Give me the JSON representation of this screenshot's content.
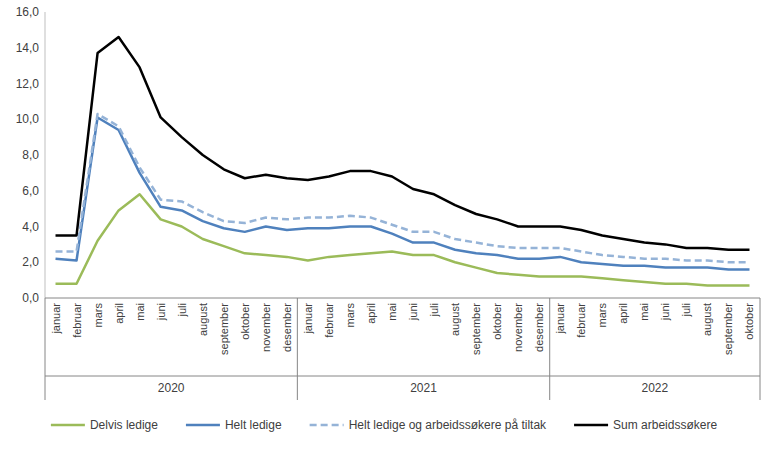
{
  "chart_data": {
    "type": "line",
    "categories": [
      "januar",
      "februar",
      "mars",
      "april",
      "mai",
      "juni",
      "juli",
      "august",
      "september",
      "oktober",
      "november",
      "desember",
      "januar",
      "februar",
      "mars",
      "april",
      "mai",
      "juni",
      "juli",
      "august",
      "september",
      "oktober",
      "november",
      "desember",
      "januar",
      "februar",
      "mars",
      "april",
      "mai",
      "juni",
      "juli",
      "august",
      "september",
      "oktober"
    ],
    "category_groups": [
      {
        "name": "2020",
        "count": 12
      },
      {
        "name": "2021",
        "count": 12
      },
      {
        "name": "2022",
        "count": 10
      }
    ],
    "series": [
      {
        "name": "Delvis ledige",
        "color": "#9bbb59",
        "line_style": "solid",
        "values": [
          0.8,
          0.8,
          3.2,
          4.9,
          5.8,
          4.4,
          4.0,
          3.3,
          2.9,
          2.5,
          2.4,
          2.3,
          2.1,
          2.3,
          2.4,
          2.5,
          2.6,
          2.4,
          2.4,
          2.0,
          1.7,
          1.4,
          1.3,
          1.2,
          1.2,
          1.2,
          1.1,
          1.0,
          0.9,
          0.8,
          0.8,
          0.7,
          0.7,
          0.7
        ]
      },
      {
        "name": "Helt ledige",
        "color": "#4f81bd",
        "line_style": "solid",
        "values": [
          2.2,
          2.1,
          10.1,
          9.4,
          7.0,
          5.1,
          4.9,
          4.3,
          3.9,
          3.7,
          4.0,
          3.8,
          3.9,
          3.9,
          4.0,
          4.0,
          3.6,
          3.1,
          3.1,
          2.7,
          2.5,
          2.4,
          2.2,
          2.2,
          2.3,
          2.0,
          1.9,
          1.8,
          1.8,
          1.7,
          1.7,
          1.7,
          1.6,
          1.6
        ]
      },
      {
        "name": "Helt ledige og arbeidssøkere på tiltak",
        "color": "#95b3d7",
        "line_style": "dashed",
        "values": [
          2.6,
          2.6,
          10.3,
          9.6,
          7.3,
          5.5,
          5.4,
          4.8,
          4.3,
          4.2,
          4.5,
          4.4,
          4.5,
          4.5,
          4.6,
          4.5,
          4.1,
          3.7,
          3.7,
          3.3,
          3.1,
          2.9,
          2.8,
          2.8,
          2.8,
          2.6,
          2.4,
          2.3,
          2.2,
          2.2,
          2.1,
          2.1,
          2.0,
          2.0
        ]
      },
      {
        "name": "Sum arbeidssøkere",
        "color": "#000000",
        "line_style": "solid",
        "values": [
          3.5,
          3.5,
          13.7,
          14.6,
          12.9,
          10.1,
          9.0,
          8.0,
          7.2,
          6.7,
          6.9,
          6.7,
          6.6,
          6.8,
          7.1,
          7.1,
          6.8,
          6.1,
          5.8,
          5.2,
          4.7,
          4.4,
          4.0,
          4.0,
          4.0,
          3.8,
          3.5,
          3.3,
          3.1,
          3.0,
          2.8,
          2.8,
          2.7,
          2.7
        ]
      }
    ],
    "ylim": [
      0,
      16
    ],
    "yticks": [
      {
        "value": 0,
        "label": "0,0"
      },
      {
        "value": 2,
        "label": "2,0"
      },
      {
        "value": 4,
        "label": "4,0"
      },
      {
        "value": 6,
        "label": "6,0"
      },
      {
        "value": 8,
        "label": "8,0"
      },
      {
        "value": 10,
        "label": "10,0"
      },
      {
        "value": 12,
        "label": "12,0"
      },
      {
        "value": 14,
        "label": "14,0"
      },
      {
        "value": 16,
        "label": "16,0"
      }
    ],
    "grid": false,
    "legend": "bottom"
  }
}
